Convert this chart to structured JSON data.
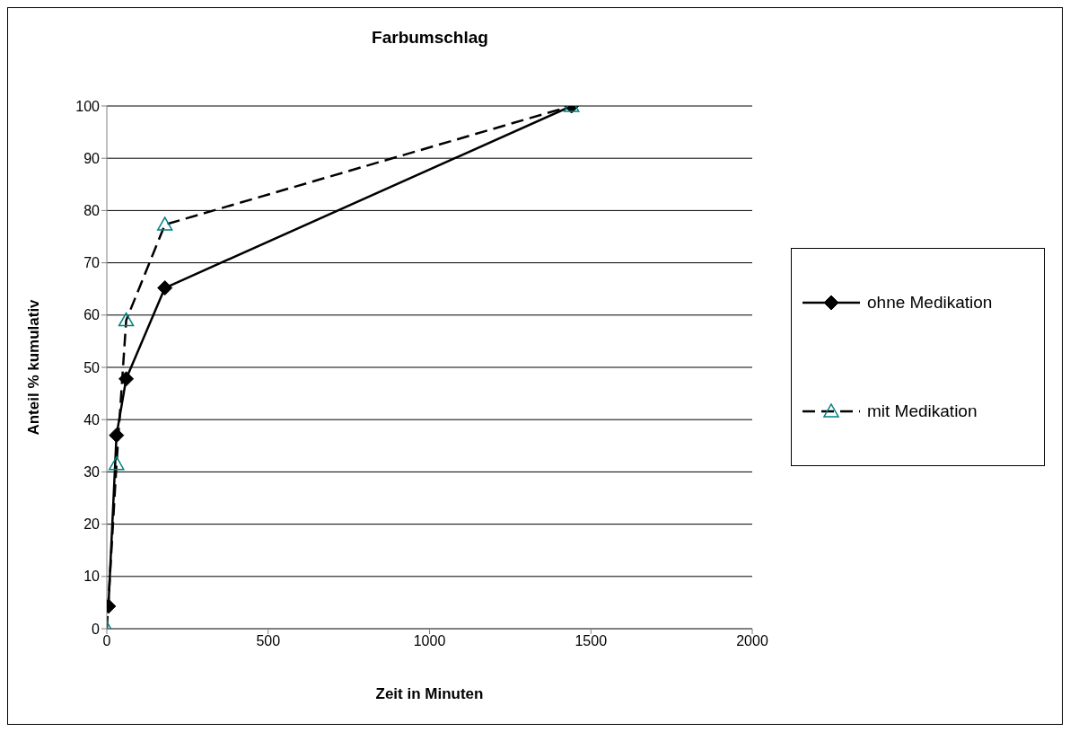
{
  "chart_data": {
    "type": "line",
    "title": "Farbumschlag",
    "xlabel": "Zeit in Minuten",
    "ylabel": "Anteil % kumulativ",
    "xlim": [
      0,
      2000
    ],
    "xticks": [
      0,
      500,
      1000,
      1500,
      2000
    ],
    "ylim": [
      0,
      100
    ],
    "yticks": [
      0,
      10,
      20,
      30,
      40,
      50,
      60,
      70,
      80,
      90,
      100
    ],
    "grid": "y",
    "legend": "right",
    "series": [
      {
        "name": "ohne Medikation",
        "color": "#000000",
        "marker": "diamond",
        "line_style": "solid",
        "x": [
          5,
          30,
          60,
          180,
          1440
        ],
        "values": [
          4.3,
          37,
          47.8,
          65.2,
          100
        ]
      },
      {
        "name": "mit Medikation",
        "color": "#000000",
        "colors": [
          "#008080",
          "#008080",
          "#008080",
          "#008080",
          "#008080"
        ],
        "marker": "triangle",
        "line_style": "dashed",
        "x": [
          0,
          30,
          60,
          180,
          1440
        ],
        "values": [
          0,
          31.5,
          59,
          77.3,
          100
        ]
      }
    ]
  }
}
